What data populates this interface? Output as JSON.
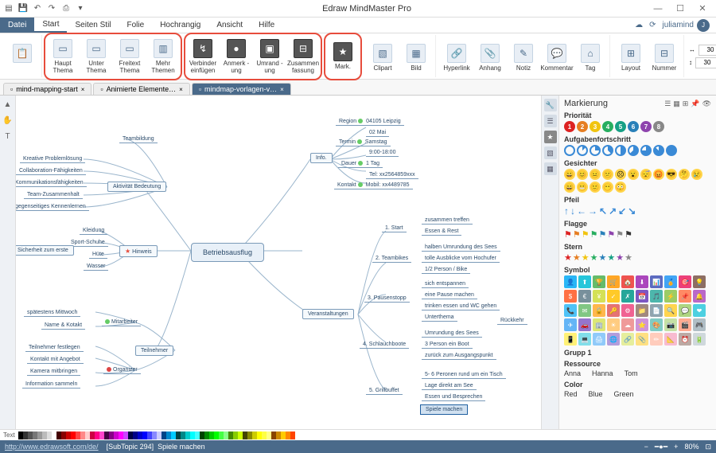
{
  "app": {
    "title": "Edraw MindMaster Pro"
  },
  "user": {
    "name": "juliamind"
  },
  "menu": {
    "file": "Datei",
    "tabs": [
      "Start",
      "Seiten Stil",
      "Folie",
      "Hochrangig",
      "Ansicht",
      "Hilfe"
    ],
    "active": 0
  },
  "ribbon": {
    "g1": [
      {
        "label": "Haupt Thema",
        "glyph": "▭"
      },
      {
        "label": "Unter Thema",
        "glyph": "▭"
      },
      {
        "label": "Freitext Thema",
        "glyph": "▭"
      },
      {
        "label": "Mehr Themen",
        "glyph": "▥"
      }
    ],
    "g2": [
      {
        "label": "Verbinder einfügen",
        "glyph": "↯"
      },
      {
        "label": "Anmerk -ung",
        "glyph": "●"
      },
      {
        "label": "Umrand -ung",
        "glyph": "▣"
      },
      {
        "label": "Zusammen fassung",
        "glyph": "⊟"
      }
    ],
    "g3": [
      {
        "label": "Mark.",
        "glyph": "★"
      },
      {
        "label": "Clipart",
        "glyph": "▧"
      },
      {
        "label": "Bild",
        "glyph": "▦"
      }
    ],
    "g4": [
      {
        "label": "Hyperlink",
        "glyph": "🔗"
      },
      {
        "label": "Anhang",
        "glyph": "📎"
      },
      {
        "label": "Notiz",
        "glyph": "✎"
      },
      {
        "label": "Kommentar",
        "glyph": "💬"
      },
      {
        "label": "Tag",
        "glyph": "⌂"
      }
    ],
    "g5": [
      {
        "label": "Layout",
        "glyph": "⊞"
      },
      {
        "label": "Nummer",
        "glyph": "⊟"
      }
    ],
    "num1": "30",
    "num2": "30"
  },
  "docs": [
    {
      "label": "mind-mapping-start"
    },
    {
      "label": "Animierte Elemente…"
    },
    {
      "label": "mindmap-vorlagen-v…",
      "active": true
    }
  ],
  "mindmap": {
    "main": "Betriebsausflug",
    "info": {
      "label": "Info.",
      "rows": [
        [
          "Region",
          "04105 Leipzig"
        ],
        [
          "",
          "02 Mai"
        ],
        [
          "Termin",
          "Samstag"
        ],
        [
          "",
          "9:00-18:00"
        ],
        [
          "Dauer",
          "1 Tag"
        ],
        [
          "",
          "Tel: xx2564859xxx"
        ],
        [
          "Kontakt",
          "Mobil: xx4489785"
        ]
      ]
    },
    "hinweis": {
      "label": "Hinweis",
      "items": [
        "Kleidung",
        "Sport-Schuhe",
        "Hüte",
        "Wasser"
      ]
    },
    "sicherheit": "Sicherheit zum erste",
    "aktivitaet": {
      "label": "Aktivität Bedeutung",
      "items": [
        "Teambildung",
        "Kreative Problemlösung",
        "Collaboration-Fähigkeiten",
        "Kommunikationsfähigkeiten",
        "Team-Zusammenhalt",
        "gegenseitiges Kennenlernen"
      ]
    },
    "teilnehmer": {
      "label": "Teilnehmer",
      "mitarbeiter": {
        "label": "Mitarbeiter",
        "items": [
          "spätestens Mittwoch",
          "Name & Kotakt"
        ]
      },
      "organizer": {
        "label": "Organizer",
        "items": [
          "Teilnehmer festlegen",
          "Kontakt mit Angebot",
          "Kamera mitbringen",
          "Information sammeln"
        ]
      }
    },
    "veranstaltungen": {
      "label": "Veranstaltungen",
      "items": [
        {
          "label": "1. Start",
          "sub": [
            "zusammen treffen",
            "Essen & Rest"
          ]
        },
        {
          "label": "2. Teambikes",
          "sub": [
            "halben Umrundung des Sees",
            "tolle Ausblicke vom Hochufer",
            "1/2 Person / Bike"
          ]
        },
        {
          "label": "3. Pausenstopp",
          "sub": [
            "sich entspannen",
            "eine Pause machen",
            "trinken essen und WC gehen",
            "Unterthema"
          ]
        },
        {
          "label": "4. Schlauchboote",
          "sub": [
            "Umrundung des Sees",
            "3 Person ein Boot",
            "zurück zum Ausgangspunkt"
          ]
        },
        {
          "label": "5. Grillbuffet",
          "sub": [
            "5- 6 Peronen rund um ein Tisch",
            "Lage direkt am See",
            "Essen und Besprechen",
            "Spiele machen"
          ]
        }
      ],
      "rueckkehr": "Rückkehr"
    }
  },
  "markpanel": {
    "title": "Markierung",
    "priority": {
      "label": "Priorität",
      "colors": [
        "#d22",
        "#e67e22",
        "#f1c40f",
        "#27ae60",
        "#16a085",
        "#2980b9",
        "#8e44ad",
        "#888"
      ]
    },
    "progress": {
      "label": "Aufgabenfortschritt",
      "count": 9
    },
    "faces": {
      "label": "Gesichter",
      "count": 16
    },
    "arrows": {
      "label": "Pfeil",
      "glyphs": [
        "↑",
        "↓",
        "←",
        "→",
        "↖",
        "↗",
        "↙",
        "↘"
      ]
    },
    "flags": {
      "label": "Flagge",
      "colors": [
        "#d22",
        "#e67e22",
        "#f1c40f",
        "#27ae60",
        "#2980b9",
        "#8e44ad",
        "#888",
        "#333"
      ]
    },
    "stars": {
      "label": "Stern",
      "colors": [
        "#d22",
        "#e67e22",
        "#f1c40f",
        "#27ae60",
        "#2980b9",
        "#16a085",
        "#8e44ad",
        "#888"
      ]
    },
    "symbols": {
      "label": "Symbol",
      "colors": [
        "#29b6f6",
        "#26c6da",
        "#66bb6a",
        "#ffa726",
        "#ef5350",
        "#ab47bc",
        "#5c6bc0",
        "#42a5f5",
        "#ec407a",
        "#8d6e63",
        "#ff7043",
        "#78909c",
        "#d4e157",
        "#ffca28",
        "#26a69a",
        "#7e57c2",
        "#4db6ac",
        "#9ccc65",
        "#ff8a65",
        "#ba68c8",
        "#4fc3f7",
        "#81c784",
        "#ffb74d",
        "#e57373",
        "#f06292",
        "#a1887f",
        "#90a4ae",
        "#ffd54f",
        "#aed581",
        "#4dd0e1",
        "#64b5f6",
        "#9575cd",
        "#dce775",
        "#ffcc80",
        "#ef9a9a",
        "#ce93d8",
        "#80cbc4",
        "#c5e1a5",
        "#ffab91",
        "#b0bec5",
        "#fff176",
        "#80deea",
        "#90caf9",
        "#b39ddb",
        "#e6ee9c",
        "#ffe082",
        "#ffccbc",
        "#f8bbd0",
        "#bcaaa4",
        "#cfd8dc"
      ]
    },
    "group1": {
      "label": "Grupp 1"
    },
    "resource": {
      "label": "Ressource",
      "items": [
        "Anna",
        "Hanna",
        "Tom"
      ]
    },
    "color": {
      "label": "Color",
      "items": [
        "Red",
        "Blue",
        "Green"
      ]
    }
  },
  "status": {
    "url": "http://www.edrawsoft.com/de/",
    "subtopic": "[SubTopic 294]",
    "sel": "Spiele machen",
    "zoom": "80%"
  },
  "colorbar": {
    "label": "Text",
    "swatches": [
      "#000",
      "#333",
      "#555",
      "#777",
      "#999",
      "#bbb",
      "#ddd",
      "#fff",
      "#400",
      "#800",
      "#c00",
      "#f00",
      "#f44",
      "#f88",
      "#fcc",
      "#c04",
      "#f08",
      "#f4c",
      "#404",
      "#808",
      "#c0c",
      "#f0f",
      "#c4f",
      "#004",
      "#008",
      "#00c",
      "#00f",
      "#44f",
      "#88f",
      "#ccf",
      "#048",
      "#08c",
      "#0cf",
      "#044",
      "#088",
      "#0cc",
      "#0ff",
      "#4ff",
      "#040",
      "#080",
      "#0c0",
      "#0f0",
      "#4f4",
      "#8f8",
      "#480",
      "#8c0",
      "#cf0",
      "#440",
      "#880",
      "#cc0",
      "#ff0",
      "#ff4",
      "#ff8",
      "#840",
      "#c80",
      "#fc0",
      "#f80",
      "#f40"
    ]
  }
}
